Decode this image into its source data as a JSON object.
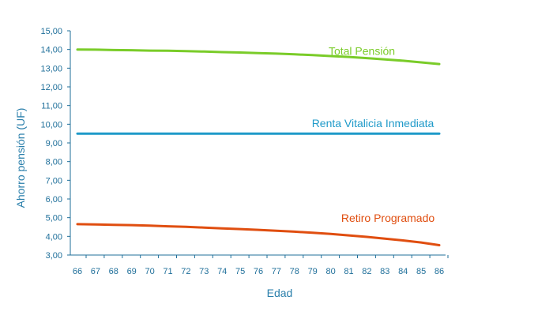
{
  "chart_data": {
    "type": "line",
    "xlabel": "Edad",
    "ylabel": "Ahorro pensión (UF)",
    "ylim": [
      3,
      15
    ],
    "yticks": [
      "3,00",
      "4,00",
      "5,00",
      "6,00",
      "7,00",
      "8,00",
      "9,00",
      "10,00",
      "11,00",
      "12,00",
      "13,00",
      "14,00",
      "15,00"
    ],
    "x": [
      66,
      67,
      68,
      69,
      70,
      71,
      72,
      73,
      74,
      75,
      76,
      77,
      78,
      79,
      80,
      81,
      82,
      83,
      84,
      85,
      86
    ],
    "xticks": [
      "66",
      "67",
      "68",
      "69",
      "70",
      "71",
      "72",
      "73",
      "74",
      "75",
      "76",
      "77",
      "78",
      "79",
      "80",
      "81",
      "82",
      "83",
      "84",
      "85",
      "86"
    ],
    "grid": false,
    "series": [
      {
        "name": "Total Pensión",
        "color": "#7acc29",
        "values": [
          14.0,
          13.99,
          13.97,
          13.96,
          13.94,
          13.93,
          13.91,
          13.89,
          13.86,
          13.84,
          13.81,
          13.78,
          13.74,
          13.7,
          13.65,
          13.6,
          13.54,
          13.47,
          13.4,
          13.31,
          13.22
        ]
      },
      {
        "name": "Renta Vitalicia Inmediata",
        "color": "#1f9ac9",
        "values": [
          9.5,
          9.5,
          9.5,
          9.5,
          9.5,
          9.5,
          9.5,
          9.5,
          9.5,
          9.5,
          9.5,
          9.5,
          9.5,
          9.5,
          9.5,
          9.5,
          9.5,
          9.5,
          9.5,
          9.5,
          9.5
        ]
      },
      {
        "name": "Retiro Programado",
        "color": "#e04e10",
        "values": [
          4.65,
          4.64,
          4.62,
          4.6,
          4.57,
          4.54,
          4.51,
          4.47,
          4.43,
          4.39,
          4.35,
          4.3,
          4.25,
          4.19,
          4.13,
          4.05,
          3.97,
          3.88,
          3.78,
          3.67,
          3.53
        ]
      }
    ]
  }
}
